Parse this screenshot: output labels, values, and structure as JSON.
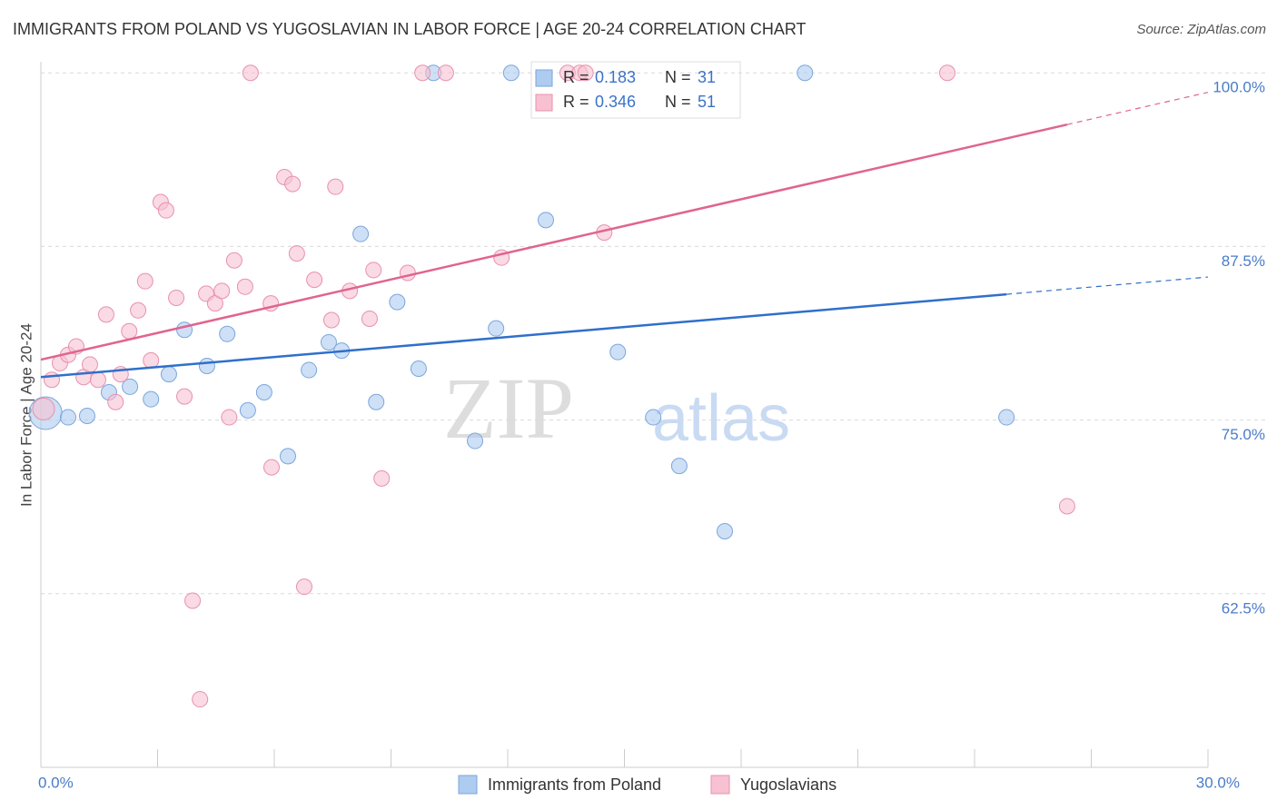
{
  "chart_data": {
    "type": "scatter",
    "title": "IMMIGRANTS FROM POLAND VS YUGOSLAVIAN IN LABOR FORCE | AGE 20-24 CORRELATION CHART",
    "source": "Source: ZipAtlas.com",
    "y_label": "In Labor Force | Age 20-24",
    "watermark": [
      "ZIP",
      "atlas"
    ],
    "r_label": "R =",
    "n_label": "N =",
    "xlim": [
      0,
      30
    ],
    "ylim": [
      50,
      100.8
    ],
    "xticks": [
      {
        "value": 0,
        "label": "0.0%"
      },
      3,
      6,
      9,
      12,
      15,
      18,
      21,
      24,
      27,
      {
        "value": 30,
        "label": "30.0%"
      }
    ],
    "yticks": [
      {
        "value": 62.5,
        "label": "62.5%"
      },
      {
        "value": 75,
        "label": "75.0%"
      },
      {
        "value": 87.5,
        "label": "87.5%"
      },
      {
        "value": 100,
        "label": "100.0%"
      }
    ],
    "grid": true,
    "series": [
      {
        "name": "Immigrants from Poland",
        "color": "#aecbf0",
        "stroke": "#7aa6dc",
        "line_color": "#2f6fcc",
        "r": 0.183,
        "n": 31,
        "trend": [
          78.1,
          85.3
        ],
        "x": [
          0.12,
          0.7,
          1.19,
          1.75,
          2.29,
          2.83,
          3.29,
          3.69,
          4.27,
          4.79,
          5.32,
          5.74,
          6.35,
          6.89,
          7.4,
          7.73,
          8.22,
          8.62,
          9.16,
          9.71,
          10.09,
          11.16,
          11.7,
          12.09,
          12.98,
          14.83,
          15.74,
          16.41,
          17.58,
          19.64,
          24.82
        ],
        "y": [
          75.5,
          75.2,
          75.3,
          77.0,
          77.4,
          76.5,
          78.3,
          81.5,
          78.9,
          81.2,
          75.7,
          77.0,
          72.4,
          78.6,
          80.6,
          80.0,
          88.4,
          76.3,
          83.5,
          78.7,
          100,
          73.5,
          81.6,
          100,
          89.4,
          79.9,
          75.2,
          71.7,
          67.0,
          100,
          75.2
        ]
      },
      {
        "name": "Yugoslavians",
        "color": "#f7c1d2",
        "stroke": "#e891ad",
        "line_color": "#e0648f",
        "r": 0.346,
        "n": 51,
        "trend": [
          79.35,
          98.6
        ],
        "x": [
          0.07,
          0.28,
          0.49,
          0.7,
          0.91,
          1.1,
          1.26,
          1.47,
          1.68,
          1.92,
          2.05,
          2.27,
          2.5,
          2.68,
          2.83,
          3.08,
          3.22,
          3.48,
          3.69,
          3.9,
          4.09,
          4.25,
          4.48,
          4.65,
          4.84,
          4.97,
          5.25,
          5.39,
          5.91,
          5.93,
          6.26,
          6.47,
          6.58,
          6.77,
          7.03,
          7.47,
          7.57,
          7.94,
          8.45,
          8.55,
          8.76,
          9.43,
          9.81,
          10.41,
          11.84,
          13.54,
          13.85,
          14.0,
          14.48,
          23.3,
          26.38
        ],
        "y": [
          75.8,
          77.9,
          79.1,
          79.7,
          80.3,
          78.1,
          79.0,
          77.9,
          82.6,
          76.3,
          78.3,
          81.4,
          82.9,
          85.0,
          79.3,
          90.7,
          90.1,
          83.8,
          76.7,
          62.0,
          54.9,
          84.1,
          83.4,
          84.3,
          75.2,
          86.5,
          84.6,
          100,
          83.4,
          71.6,
          92.5,
          92.0,
          87.0,
          63.0,
          85.1,
          82.2,
          91.8,
          84.3,
          82.3,
          85.8,
          70.8,
          85.6,
          100,
          100,
          86.7,
          100,
          100,
          100,
          88.5,
          100,
          68.8
        ]
      }
    ]
  }
}
